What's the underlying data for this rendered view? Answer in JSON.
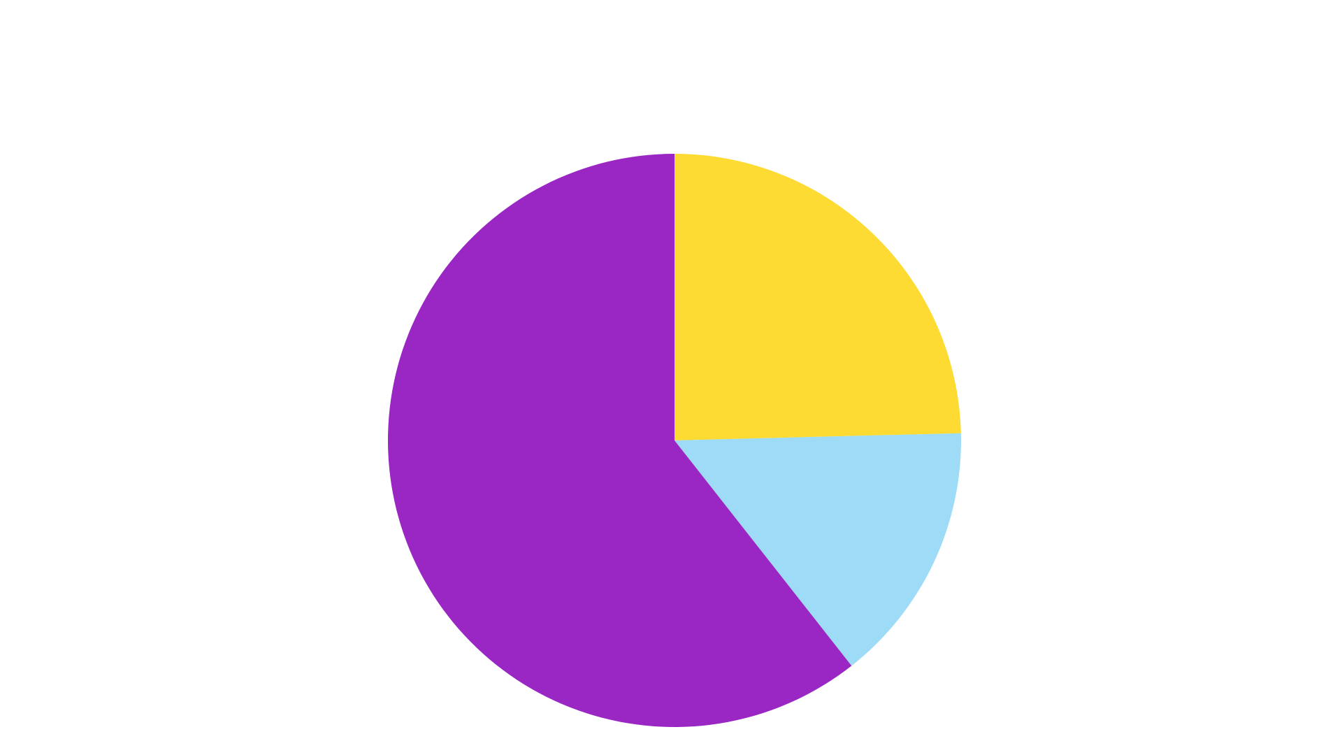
{
  "chart_data": {
    "type": "pie",
    "title": "",
    "start_angle_deg": 90,
    "direction": "clockwise",
    "legend": "none",
    "slices": [
      {
        "label": "",
        "value": 24.6,
        "color": "#FDDB32"
      },
      {
        "label": "",
        "value": 14.8,
        "color": "#9EDBF7"
      },
      {
        "label": "",
        "value": 60.6,
        "color": "#9A27C4"
      }
    ]
  }
}
